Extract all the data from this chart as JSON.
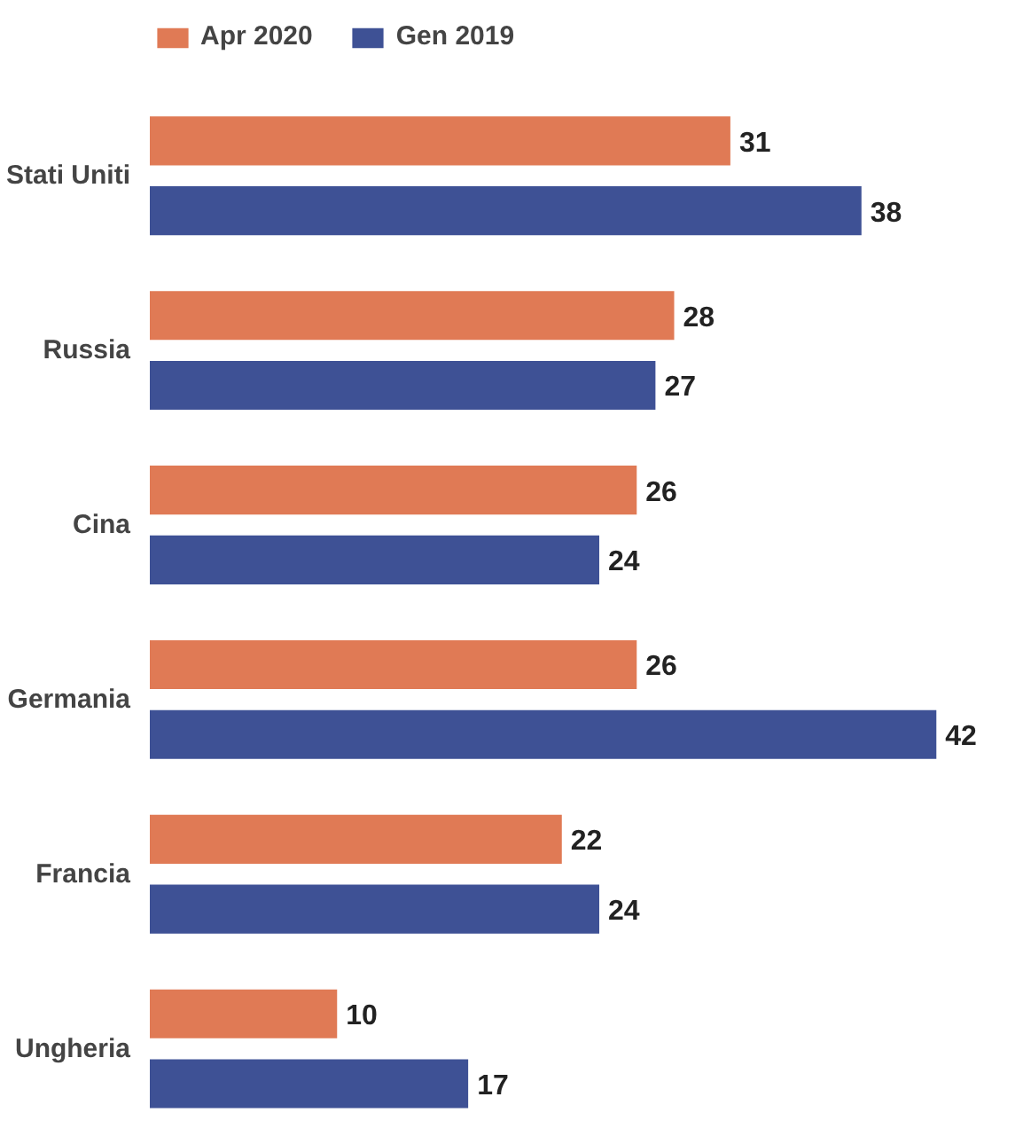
{
  "chart_data": {
    "type": "bar",
    "orientation": "horizontal",
    "categories": [
      "Stati Uniti",
      "Russia",
      "Cina",
      "Germania",
      "Francia",
      "Ungheria"
    ],
    "series": [
      {
        "name": "Apr 2020",
        "color": "#e07a55",
        "values": [
          31,
          28,
          26,
          26,
          22,
          10
        ]
      },
      {
        "name": "Gen 2019",
        "color": "#3e5195",
        "values": [
          38,
          27,
          24,
          42,
          24,
          17
        ]
      }
    ],
    "data_labels": true,
    "legend": "top left",
    "tick_labels": "y"
  }
}
